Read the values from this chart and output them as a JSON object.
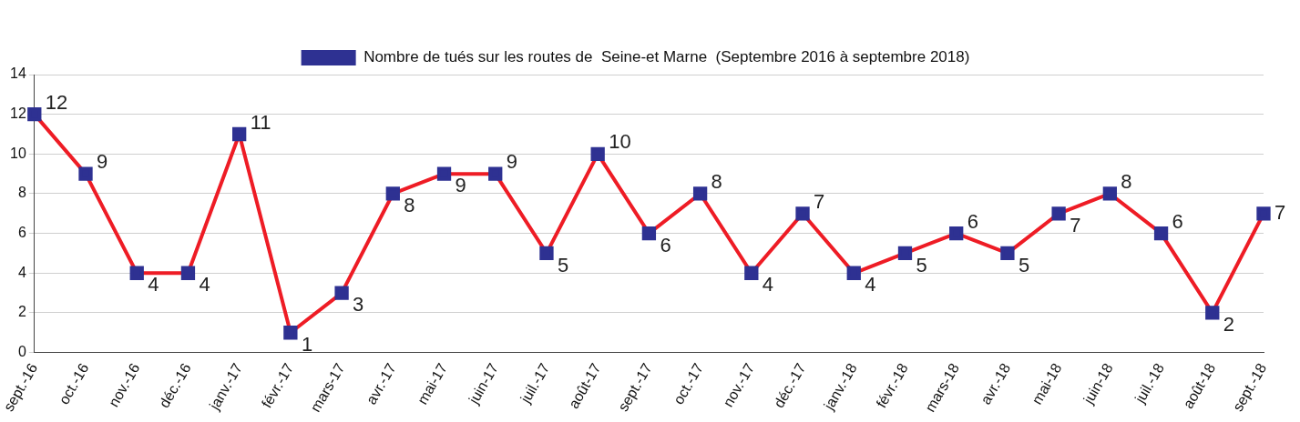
{
  "chart_data": {
    "type": "line",
    "categories": [
      "sept.-16",
      "oct.-16",
      "nov.-16",
      "déc.-16",
      "janv.-17",
      "févr.-17",
      "mars-17",
      "avr.-17",
      "mai-17",
      "juin-17",
      "juil.-17",
      "août-17",
      "sept.-17",
      "oct.-17",
      "nov.-17",
      "déc.-17",
      "janv.-18",
      "févr.-18",
      "mars-18",
      "avr.-18",
      "mai-18",
      "juin-18",
      "juil.-18",
      "août-18",
      "sept.-18"
    ],
    "series": [
      {
        "name": "Nombre de tués sur les routes de  Seine-et Marne  (Septembre 2016 à septembre 2018)",
        "color": "#ee1c25",
        "colors": [
          "#2e3192",
          "#2e3192",
          "#2e3192",
          "#2e3192",
          "#2e3192",
          "#2e3192",
          "#2e3192",
          "#2e3192",
          "#2e3192",
          "#2e3192",
          "#2e3192",
          "#2e3192",
          "#2e3192",
          "#2e3192",
          "#2e3192",
          "#2e3192",
          "#2e3192",
          "#2e3192",
          "#2e3192",
          "#2e3192",
          "#2e3192",
          "#2e3192",
          "#2e3192",
          "#2e3192",
          "#2e3192"
        ],
        "values": [
          12,
          9,
          4,
          4,
          11,
          1,
          3,
          8,
          9,
          9,
          5,
          10,
          6,
          8,
          4,
          7,
          4,
          5,
          6,
          5,
          7,
          8,
          6,
          2,
          7
        ]
      }
    ],
    "ylim": [
      0,
      14
    ],
    "yticks": [
      0,
      2,
      4,
      6,
      8,
      10,
      12,
      14
    ],
    "grid": "y",
    "legend": "top",
    "marker": "square",
    "line_style": "solid",
    "data_labels": true
  }
}
